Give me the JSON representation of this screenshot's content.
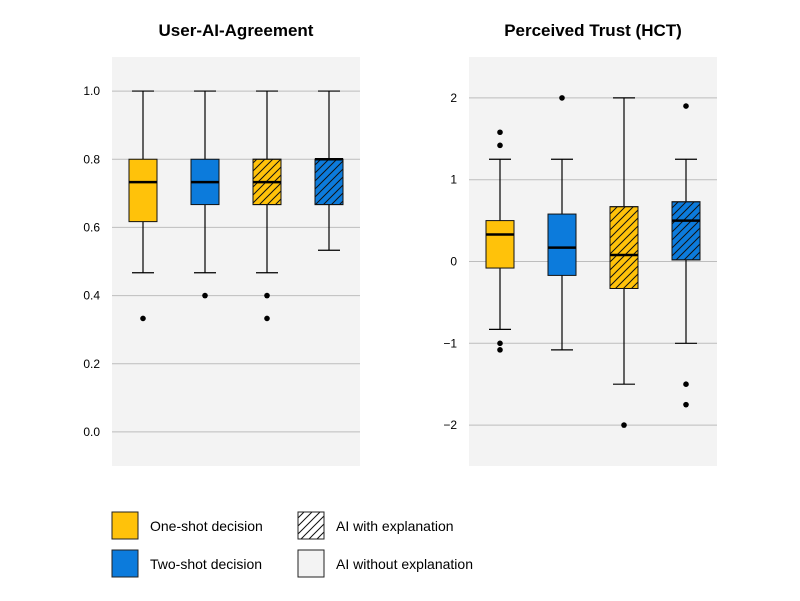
{
  "colors": {
    "one_shot": "#FFC20A",
    "two_shot": "#0C7BDC",
    "panel_bg": "#F3F3F3",
    "grid": "#BDBDBD"
  },
  "legend": {
    "one_shot": "One-shot decision",
    "two_shot": "Two-shot decision",
    "with_expl": "AI with explanation",
    "without_expl": "AI without explanation"
  },
  "chart_data": [
    {
      "type": "box",
      "title": "User-AI-Agreement",
      "xlabel": "",
      "ylabel": "",
      "ylim": [
        -0.1,
        1.1
      ],
      "yticks": [
        0.0,
        0.2,
        0.4,
        0.6,
        0.8,
        1.0
      ],
      "ytick_labels": [
        "0.0",
        "0.2",
        "0.4",
        "0.6",
        "0.8",
        "1.0"
      ],
      "grid": true,
      "boxes": [
        {
          "decision": "one-shot",
          "explanation": false,
          "whisker_low": 0.467,
          "q1": 0.617,
          "median": 0.733,
          "q3": 0.8,
          "whisker_high": 1.0,
          "outliers": [
            0.333
          ]
        },
        {
          "decision": "two-shot",
          "explanation": false,
          "whisker_low": 0.467,
          "q1": 0.667,
          "median": 0.733,
          "q3": 0.8,
          "whisker_high": 1.0,
          "outliers": [
            0.4
          ]
        },
        {
          "decision": "one-shot",
          "explanation": true,
          "whisker_low": 0.467,
          "q1": 0.667,
          "median": 0.733,
          "q3": 0.8,
          "whisker_high": 1.0,
          "outliers": [
            0.4,
            0.333
          ]
        },
        {
          "decision": "two-shot",
          "explanation": true,
          "whisker_low": 0.533,
          "q1": 0.667,
          "median": 0.8,
          "q3": 0.8,
          "whisker_high": 1.0,
          "outliers": []
        }
      ]
    },
    {
      "type": "box",
      "title": "Perceived Trust (HCT)",
      "xlabel": "",
      "ylabel": "",
      "ylim": [
        -2.5,
        2.5
      ],
      "yticks": [
        -2,
        -1,
        0,
        1,
        2
      ],
      "ytick_labels": [
        "−2",
        "−1",
        "0",
        "1",
        "2"
      ],
      "grid": true,
      "boxes": [
        {
          "decision": "one-shot",
          "explanation": false,
          "whisker_low": -0.83,
          "q1": -0.08,
          "median": 0.33,
          "q3": 0.5,
          "whisker_high": 1.25,
          "outliers": [
            1.58,
            1.42,
            -1.0,
            -1.08
          ]
        },
        {
          "decision": "two-shot",
          "explanation": false,
          "whisker_low": -1.08,
          "q1": -0.17,
          "median": 0.17,
          "q3": 0.58,
          "whisker_high": 1.25,
          "outliers": [
            2.0
          ]
        },
        {
          "decision": "one-shot",
          "explanation": true,
          "whisker_low": -1.5,
          "q1": -0.33,
          "median": 0.08,
          "q3": 0.67,
          "whisker_high": 2.0,
          "outliers": [
            -2.0
          ]
        },
        {
          "decision": "two-shot",
          "explanation": true,
          "whisker_low": -1.0,
          "q1": 0.02,
          "median": 0.5,
          "q3": 0.73,
          "whisker_high": 1.25,
          "outliers": [
            1.9,
            -1.5,
            -1.75
          ]
        }
      ]
    }
  ]
}
